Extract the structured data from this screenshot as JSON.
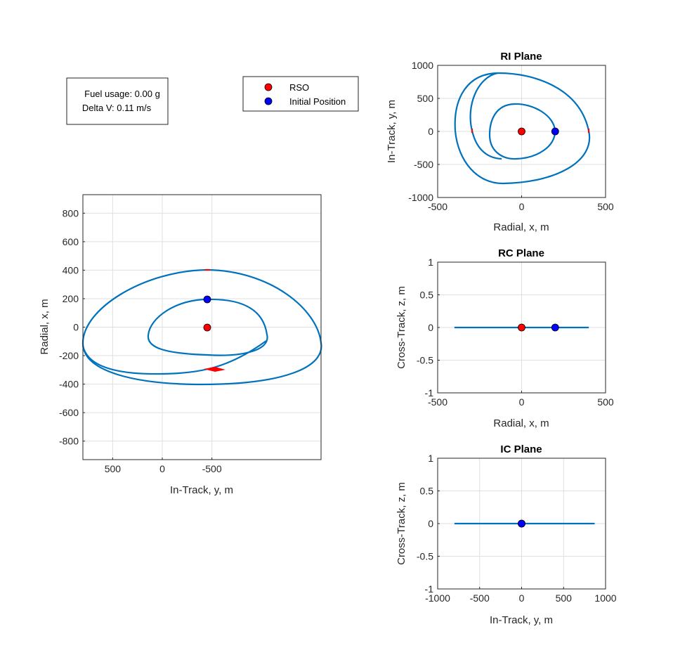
{
  "info_box": {
    "fuel_usage": "Fuel usage: 0.00 g",
    "delta_v": "Delta V: 0.11 m/s"
  },
  "legend": {
    "entries": [
      {
        "label": "RSO",
        "color": "#ff0000"
      },
      {
        "label": "Initial Position",
        "color": "#0000ff"
      }
    ]
  },
  "colors": {
    "trajectory": "#0072bd",
    "burn": "#ff0000",
    "rso": "#ff0000",
    "initial": "#0000ff"
  },
  "chart_data": [
    {
      "id": "main",
      "type": "line",
      "title": "",
      "xlabel": "In-Track, y, m",
      "ylabel": "Radial, x, m",
      "xlim": [
        800,
        -1600
      ],
      "ylim": [
        -930,
        930
      ],
      "x_reversed": true,
      "xticks": [
        500,
        0,
        -500
      ],
      "xtick_labels": [
        "500",
        "0",
        "-500"
      ],
      "yticks": [
        -800,
        -600,
        -400,
        -200,
        0,
        200,
        400,
        600,
        800
      ],
      "ytick_labels": [
        "-800",
        "-600",
        "-400",
        "-200",
        "0",
        "200",
        "400",
        "600",
        "800"
      ],
      "grid": true,
      "inner_orbit": {
        "center": [
          0,
          0
        ],
        "semi_y": 400,
        "semi_x": 200
      },
      "outer_orbit": {
        "center": [
          -50,
          0
        ],
        "semi_y": 800,
        "semi_x": 400
      },
      "rso": {
        "x": 0,
        "y": 0
      },
      "initial_position": {
        "x": 200,
        "y": 0
      },
      "burn": {
        "x": -300,
        "y": -100
      }
    },
    {
      "id": "ri",
      "type": "line",
      "title": "RI Plane",
      "xlabel": "Radial, x, m",
      "ylabel": "In-Track, y, m",
      "xlim": [
        -500,
        500
      ],
      "ylim": [
        -1000,
        1000
      ],
      "xticks": [
        -500,
        0,
        500
      ],
      "xtick_labels": [
        "-500",
        "0",
        "500"
      ],
      "yticks": [
        -1000,
        -500,
        0,
        500,
        1000
      ],
      "ytick_labels": [
        "-1000",
        "-500",
        "0",
        "500",
        "1000"
      ],
      "grid": true,
      "rso": {
        "x": 0,
        "y": 0
      },
      "initial_position": {
        "x": 200,
        "y": 0
      }
    },
    {
      "id": "rc",
      "type": "line",
      "title": "RC Plane",
      "xlabel": "Radial, x, m",
      "ylabel": "Cross-Track, z, m",
      "xlim": [
        -500,
        500
      ],
      "ylim": [
        -1,
        1
      ],
      "xticks": [
        -500,
        0,
        500
      ],
      "xtick_labels": [
        "-500",
        "0",
        "500"
      ],
      "yticks": [
        -1,
        -0.5,
        0,
        0.5,
        1
      ],
      "ytick_labels": [
        "-1",
        "-0.5",
        "0",
        "0.5",
        "1"
      ],
      "grid": true,
      "segment": {
        "x": [
          -400,
          400
        ],
        "y": [
          0,
          0
        ]
      },
      "rso": {
        "x": 0,
        "y": 0
      },
      "initial_position": {
        "x": 200,
        "y": 0
      }
    },
    {
      "id": "ic",
      "type": "line",
      "title": "IC Plane",
      "xlabel": "In-Track, y, m",
      "ylabel": "Cross-Track, z, m",
      "xlim": [
        -1000,
        1000
      ],
      "ylim": [
        -1,
        1
      ],
      "xticks": [
        -1000,
        -500,
        0,
        500,
        1000
      ],
      "xtick_labels": [
        "-1000",
        "-500",
        "0",
        "500",
        "1000"
      ],
      "yticks": [
        -1,
        -0.5,
        0,
        0.5,
        1
      ],
      "ytick_labels": [
        "-1",
        "-0.5",
        "0",
        "0.5",
        "1"
      ],
      "grid": true,
      "segment": {
        "x": [
          -800,
          870
        ],
        "y": [
          0,
          0
        ]
      },
      "rso": {
        "x": 0,
        "y": 0
      },
      "initial_position": {
        "x": 0,
        "y": 0
      }
    }
  ]
}
